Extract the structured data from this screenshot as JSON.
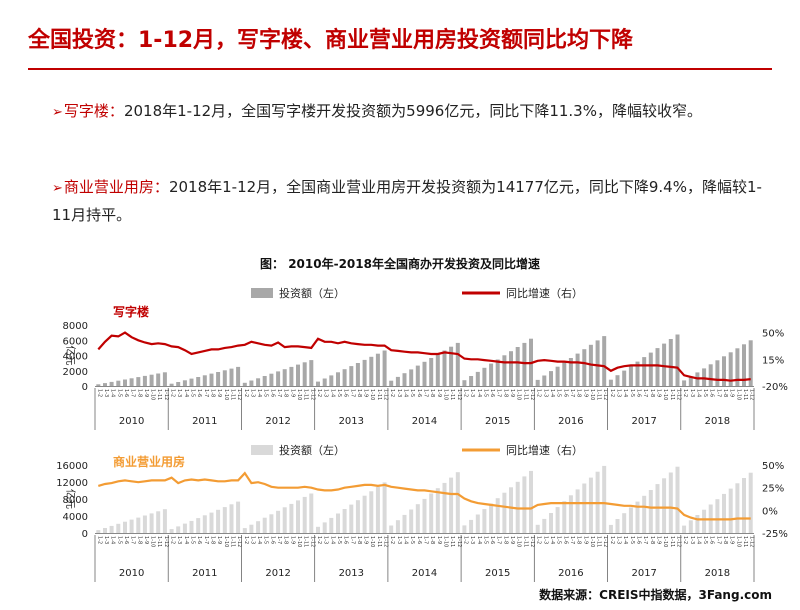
{
  "title": "全国投资：1-12月，写字楼、商业营业用房投资额同比均下降",
  "bullets": [
    {
      "label": "写字楼",
      "sep": "：",
      "text": "2018年1-12月，全国写字楼开发投资额为5996亿元，同比下降11.3%，降幅较收窄。"
    },
    {
      "label": "商业营业用房",
      "sep": "：",
      "text": "2018年1-12月，全国商业营业用房开发投资额为14177亿元，同比下降9.4%，降幅较1-11月持平。"
    }
  ],
  "figure_title": "图： 2010年-2018年全国商办开发投资及同比增速",
  "source": "数据来源：CREIS中指数据，3Fang.com",
  "colors": {
    "accent": "#c00000",
    "office_bar": "#a8a8a8",
    "office_line": "#c00000",
    "commercial_bar": "#d9d9d9",
    "commercial_line": "#f39c34"
  },
  "chart_data": [
    {
      "type": "bar",
      "title": "写字楼",
      "legend": [
        "投资额（左）",
        "同比增速（右）"
      ],
      "ylabel": "亿元",
      "ylim": [
        0,
        8000
      ],
      "yticks": [
        0,
        2000,
        4000,
        6000,
        8000
      ],
      "ylim_right": [
        -20,
        60
      ],
      "yticks_right": [
        "-20%",
        "15%",
        "50%"
      ],
      "years": [
        "2010",
        "2011",
        "2012",
        "2013",
        "2014",
        "2015",
        "2016",
        "2017",
        "2018"
      ],
      "months": [
        "1-2",
        "1-3",
        "1-4",
        "1-5",
        "1-6",
        "1-7",
        "1-8",
        "1-9",
        "1-10",
        "1-11",
        "1-12"
      ],
      "series": [
        {
          "name": "投资额（左）",
          "kind": "bar",
          "annual_total": [
            1800,
            2500,
            3400,
            4650,
            5650,
            6200,
            6550,
            6750,
            5996
          ]
        },
        {
          "name": "同比增速（右）",
          "kind": "line",
          "values": [
            28,
            38,
            46,
            45,
            50,
            44,
            40,
            37,
            35,
            36,
            35,
            32,
            31,
            27,
            22,
            24,
            26,
            28,
            28,
            30,
            31,
            33,
            34,
            38,
            36,
            34,
            33,
            37,
            31,
            32,
            32,
            31,
            30,
            42,
            38,
            38,
            36,
            38,
            36,
            35,
            34,
            34,
            33,
            33,
            27,
            26,
            25,
            24,
            24,
            23,
            22,
            22,
            24,
            23,
            22,
            16,
            15,
            15,
            14,
            13,
            12,
            11,
            11,
            11,
            10,
            10,
            13,
            14,
            13,
            12,
            12,
            11,
            11,
            10,
            8,
            7,
            6,
            0,
            4,
            6,
            7,
            7,
            7,
            7,
            7,
            6,
            5,
            4,
            -6,
            -8,
            -10,
            -10,
            -11,
            -12,
            -12,
            -13,
            -12,
            -12,
            -11
          ]
        }
      ]
    },
    {
      "type": "bar",
      "title": "商业营业用房",
      "legend": [
        "投资额（左）",
        "同比增速（右）"
      ],
      "ylabel": "亿元",
      "ylim": [
        0,
        16000
      ],
      "yticks": [
        0,
        4000,
        8000,
        12000,
        16000
      ],
      "ylim_right": [
        -25,
        50
      ],
      "yticks_right": [
        "-25%",
        "0%",
        "25%",
        "50%"
      ],
      "years": [
        "2010",
        "2011",
        "2012",
        "2013",
        "2014",
        "2015",
        "2016",
        "2017",
        "2018"
      ],
      "months": [
        "1-2",
        "1-3",
        "1-4",
        "1-5",
        "1-6",
        "1-7",
        "1-8",
        "1-9",
        "1-10",
        "1-11",
        "1-12"
      ],
      "series": [
        {
          "name": "投资额（左）",
          "kind": "bar",
          "annual_total": [
            5600,
            7400,
            9300,
            11900,
            14300,
            14600,
            15800,
            15600,
            14177
          ]
        },
        {
          "name": "同比增速（右）",
          "kind": "line",
          "values": [
            27,
            29,
            30,
            32,
            33,
            32,
            31,
            32,
            33,
            33,
            33,
            36,
            30,
            33,
            34,
            33,
            34,
            33,
            32,
            32,
            33,
            33,
            41,
            30,
            31,
            29,
            26,
            25,
            25,
            25,
            25,
            26,
            25,
            23,
            22,
            22,
            23,
            25,
            26,
            27,
            28,
            28,
            27,
            28,
            26,
            25,
            24,
            23,
            22,
            22,
            21,
            20,
            19,
            18,
            18,
            13,
            10,
            8,
            7,
            6,
            5,
            4,
            3,
            2,
            2,
            2,
            6,
            7,
            8,
            8,
            8,
            8,
            8,
            8,
            8,
            8,
            8,
            7,
            6,
            5,
            5,
            4,
            4,
            3,
            3,
            3,
            3,
            2,
            -5,
            -8,
            -10,
            -10,
            -10,
            -10,
            -10,
            -10,
            -9,
            -9,
            -9
          ]
        }
      ]
    }
  ]
}
